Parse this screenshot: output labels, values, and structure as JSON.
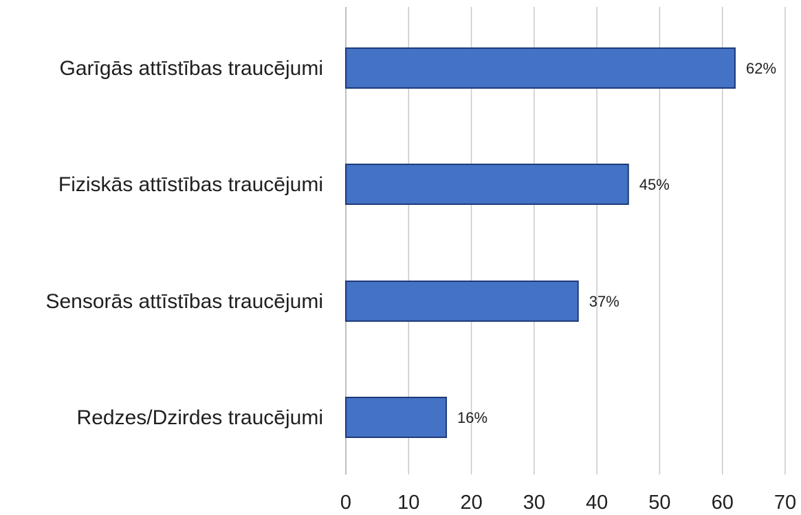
{
  "chart_data": {
    "type": "bar",
    "orientation": "horizontal",
    "categories": [
      "Garīgās attīstības traucējumi",
      "Fiziskās attīstības traucējumi",
      "Sensorās attīstības traucējumi",
      "Redzes/Dzirdes traucējumi"
    ],
    "values": [
      62,
      45,
      37,
      16
    ],
    "data_labels": [
      "62%",
      "45%",
      "37%",
      "16%"
    ],
    "xticks": [
      "0",
      "10",
      "20",
      "30",
      "40",
      "50",
      "60",
      "70"
    ],
    "xlim": [
      0,
      70
    ],
    "title": "",
    "xlabel": "",
    "ylabel": "",
    "grid": "vertical",
    "legend": "none",
    "colors": {
      "bar_fill": "#4472c4",
      "bar_stroke": "#1f3a7a",
      "grid": "#c8c8c8",
      "axis": "#bfbfbf",
      "text": "#1f1f1f"
    }
  }
}
